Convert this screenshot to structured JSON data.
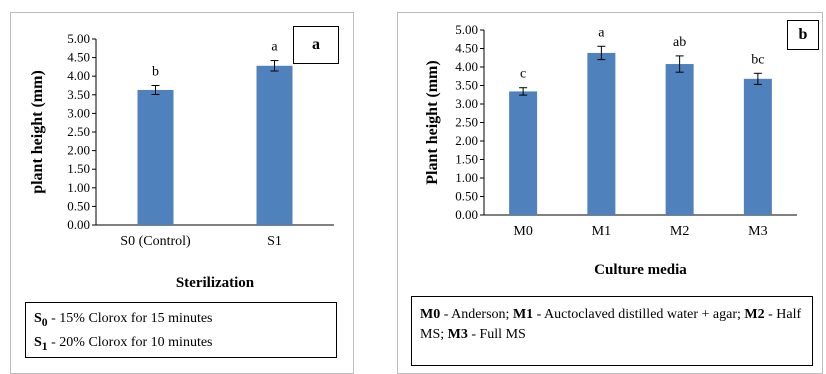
{
  "chart_data": [
    {
      "type": "bar",
      "panel_label": "a",
      "categories": [
        "S0 (Control)",
        "S1"
      ],
      "values": [
        3.63,
        4.28
      ],
      "errors": [
        0.12,
        0.14
      ],
      "letters": [
        "b",
        "a"
      ],
      "ylabel": "plant height (mm)",
      "xlabel": "Sterilization",
      "ylim": [
        0,
        5
      ],
      "yticks": [
        "0.00",
        "0.50",
        "1.00",
        "1.50",
        "2.00",
        "2.50",
        "3.00",
        "3.50",
        "4.00",
        "4.50",
        "5.00"
      ],
      "grid": false,
      "bar_color": "#4f81bd",
      "legend_lines": [
        {
          "key": "S",
          "sub": "0",
          "text": " - 15% Clorox for 15 minutes"
        },
        {
          "key": "S",
          "sub": "1",
          "text": " - 20% Clorox for 10 minutes"
        }
      ]
    },
    {
      "type": "bar",
      "panel_label": "b",
      "categories": [
        "M0",
        "M1",
        "M2",
        "M3"
      ],
      "values": [
        3.34,
        4.38,
        4.08,
        3.68
      ],
      "errors": [
        0.1,
        0.18,
        0.22,
        0.15
      ],
      "letters": [
        "c",
        "a",
        "ab",
        "bc"
      ],
      "ylabel": "Plant height (mm)",
      "xlabel": "Culture media",
      "ylim": [
        0,
        5
      ],
      "yticks": [
        "0.00",
        "0.50",
        "1.00",
        "1.50",
        "2.00",
        "2.50",
        "3.00",
        "3.50",
        "4.00",
        "4.50",
        "5.00"
      ],
      "grid": false,
      "bar_color": "#4f81bd",
      "legend_segments": [
        {
          "bold": "M0",
          "text": " - Anderson; "
        },
        {
          "bold": "M1",
          "text": " - Auctoclaved  distilled water + agar; "
        },
        {
          "bold": "M2",
          "text": " - Half  MS;  "
        },
        {
          "bold": "M3",
          "text": " - Full MS"
        }
      ]
    }
  ]
}
